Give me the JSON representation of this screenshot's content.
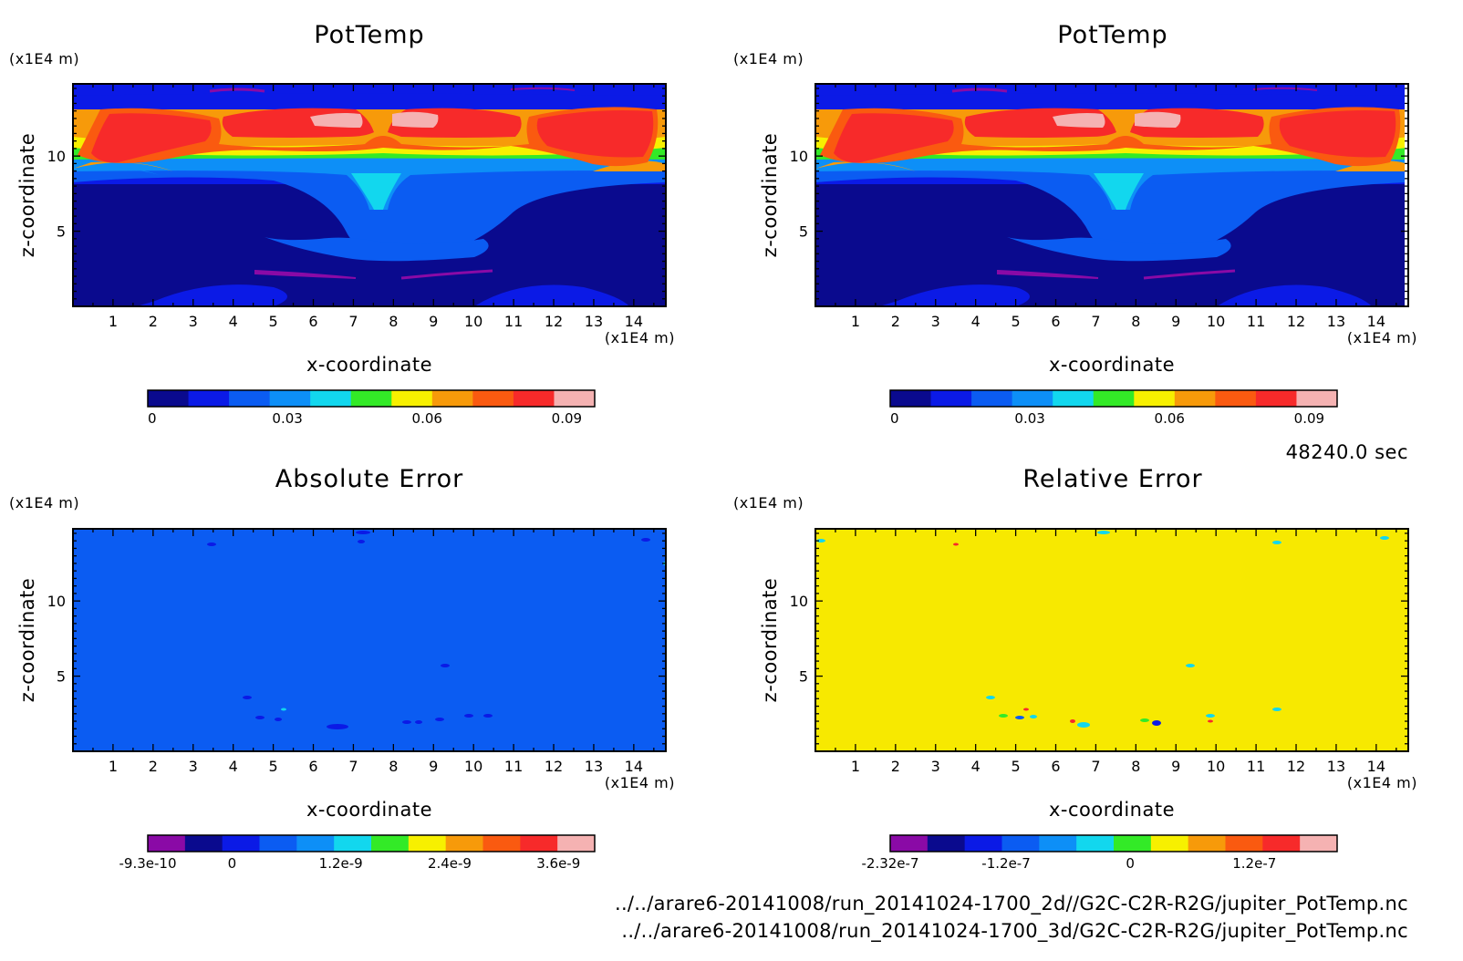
{
  "colors": {
    "levels": [
      "#0a0a8e",
      "#0b1ae6",
      "#0b5cf2",
      "#0d8ff7",
      "#12d7ee",
      "#33ea27",
      "#f7f000",
      "#f79a0a",
      "#fa5a10",
      "#f72a2a",
      "#f5b2b2"
    ],
    "purple": "#8a0aa6",
    "abs_fill": "#0b5cf2",
    "rel_fill": "#f7e900"
  },
  "time_label": "48240.0 sec",
  "footer_lines": [
    "../../arare6-20141008/run_20141024-1700_2d//G2C-C2R-R2G/jupiter_PotTemp.nc",
    "../../arare6-20141008/run_20141024-1700_3d/G2C-C2R-R2G/jupiter_PotTemp.nc"
  ],
  "chart_data": [
    {
      "type": "heatmap",
      "title": "PotTemp",
      "xlabel": "x-coordinate",
      "ylabel": "z-coordinate",
      "x_unit": "(x1E4 m)",
      "y_unit": "(x1E4 m)",
      "x_ticks": [
        "1",
        "2",
        "3",
        "4",
        "5",
        "6",
        "7",
        "8",
        "9",
        "10",
        "11",
        "12",
        "13",
        "14"
      ],
      "y_ticks": [
        "5",
        "10"
      ],
      "xlim": [
        0,
        14.8
      ],
      "ylim": [
        0,
        14.8
      ],
      "colorbar": {
        "ticks": [
          "0",
          "0.03",
          "0.06",
          "0.09"
        ],
        "range": [
          0,
          0.096
        ]
      }
    },
    {
      "type": "heatmap",
      "title": "PotTemp",
      "xlabel": "x-coordinate",
      "ylabel": "z-coordinate",
      "x_unit": "(x1E4 m)",
      "y_unit": "(x1E4 m)",
      "x_ticks": [
        "1",
        "2",
        "3",
        "4",
        "5",
        "6",
        "7",
        "8",
        "9",
        "10",
        "11",
        "12",
        "13",
        "14"
      ],
      "y_ticks": [
        "5",
        "10"
      ],
      "xlim": [
        0,
        14.8
      ],
      "ylim": [
        0,
        14.8
      ],
      "colorbar": {
        "ticks": [
          "0",
          "0.03",
          "0.06",
          "0.09"
        ],
        "range": [
          0,
          0.096
        ]
      }
    },
    {
      "type": "heatmap",
      "title": "Absolute Error",
      "xlabel": "x-coordinate",
      "ylabel": "z-coordinate",
      "x_unit": "(x1E4 m)",
      "y_unit": "(x1E4 m)",
      "x_ticks": [
        "1",
        "2",
        "3",
        "4",
        "5",
        "6",
        "7",
        "8",
        "9",
        "10",
        "11",
        "12",
        "13",
        "14"
      ],
      "y_ticks": [
        "5",
        "10"
      ],
      "xlim": [
        0,
        14.8
      ],
      "ylim": [
        0,
        14.8
      ],
      "colorbar": {
        "ticks": [
          "-9.3e-10",
          "0",
          "1.2e-9",
          "2.4e-9",
          "3.6e-9"
        ],
        "range": [
          -9.3e-10,
          4e-09
        ]
      }
    },
    {
      "type": "heatmap",
      "title": "Relative Error",
      "xlabel": "x-coordinate",
      "ylabel": "z-coordinate",
      "x_unit": "(x1E4 m)",
      "y_unit": "(x1E4 m)",
      "x_ticks": [
        "1",
        "2",
        "3",
        "4",
        "5",
        "6",
        "7",
        "8",
        "9",
        "10",
        "11",
        "12",
        "13",
        "14"
      ],
      "y_ticks": [
        "5",
        "10"
      ],
      "xlim": [
        0,
        14.8
      ],
      "ylim": [
        0,
        14.8
      ],
      "colorbar": {
        "ticks": [
          "-2.32e-7",
          "-1.2e-7",
          "0",
          "1.2e-7"
        ],
        "range": [
          -2.32e-07,
          2e-07
        ]
      }
    }
  ]
}
